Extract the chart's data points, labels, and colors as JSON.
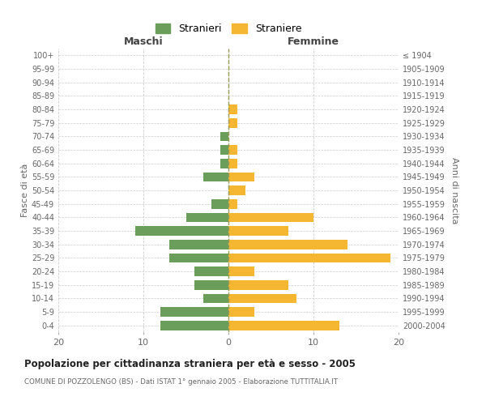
{
  "age_groups": [
    "0-4",
    "5-9",
    "10-14",
    "15-19",
    "20-24",
    "25-29",
    "30-34",
    "35-39",
    "40-44",
    "45-49",
    "50-54",
    "55-59",
    "60-64",
    "65-69",
    "70-74",
    "75-79",
    "80-84",
    "85-89",
    "90-94",
    "95-99",
    "100+"
  ],
  "birth_years": [
    "2000-2004",
    "1995-1999",
    "1990-1994",
    "1985-1989",
    "1980-1984",
    "1975-1979",
    "1970-1974",
    "1965-1969",
    "1960-1964",
    "1955-1959",
    "1950-1954",
    "1945-1949",
    "1940-1944",
    "1935-1939",
    "1930-1934",
    "1925-1929",
    "1920-1924",
    "1915-1919",
    "1910-1914",
    "1905-1909",
    "≤ 1904"
  ],
  "maschi": [
    8,
    8,
    3,
    4,
    4,
    7,
    7,
    11,
    5,
    2,
    0,
    3,
    1,
    1,
    1,
    0,
    0,
    0,
    0,
    0,
    0
  ],
  "femmine": [
    13,
    3,
    8,
    7,
    3,
    19,
    14,
    7,
    10,
    1,
    2,
    3,
    1,
    1,
    0,
    1,
    1,
    0,
    0,
    0,
    0
  ],
  "maschi_color": "#6a9e5a",
  "femmine_color": "#f5b731",
  "title": "Popolazione per cittadinanza straniera per età e sesso - 2005",
  "subtitle": "COMUNE DI POZZOLENGO (BS) - Dati ISTAT 1° gennaio 2005 - Elaborazione TUTTITALIA.IT",
  "ylabel_left": "Fasce di età",
  "ylabel_right": "Anni di nascita",
  "xlabel_left": "Maschi",
  "xlabel_right": "Femmine",
  "legend_maschi": "Stranieri",
  "legend_femmine": "Straniere",
  "xlim": 20,
  "bg_color": "#ffffff",
  "grid_color": "#cccccc",
  "bar_height": 0.7
}
